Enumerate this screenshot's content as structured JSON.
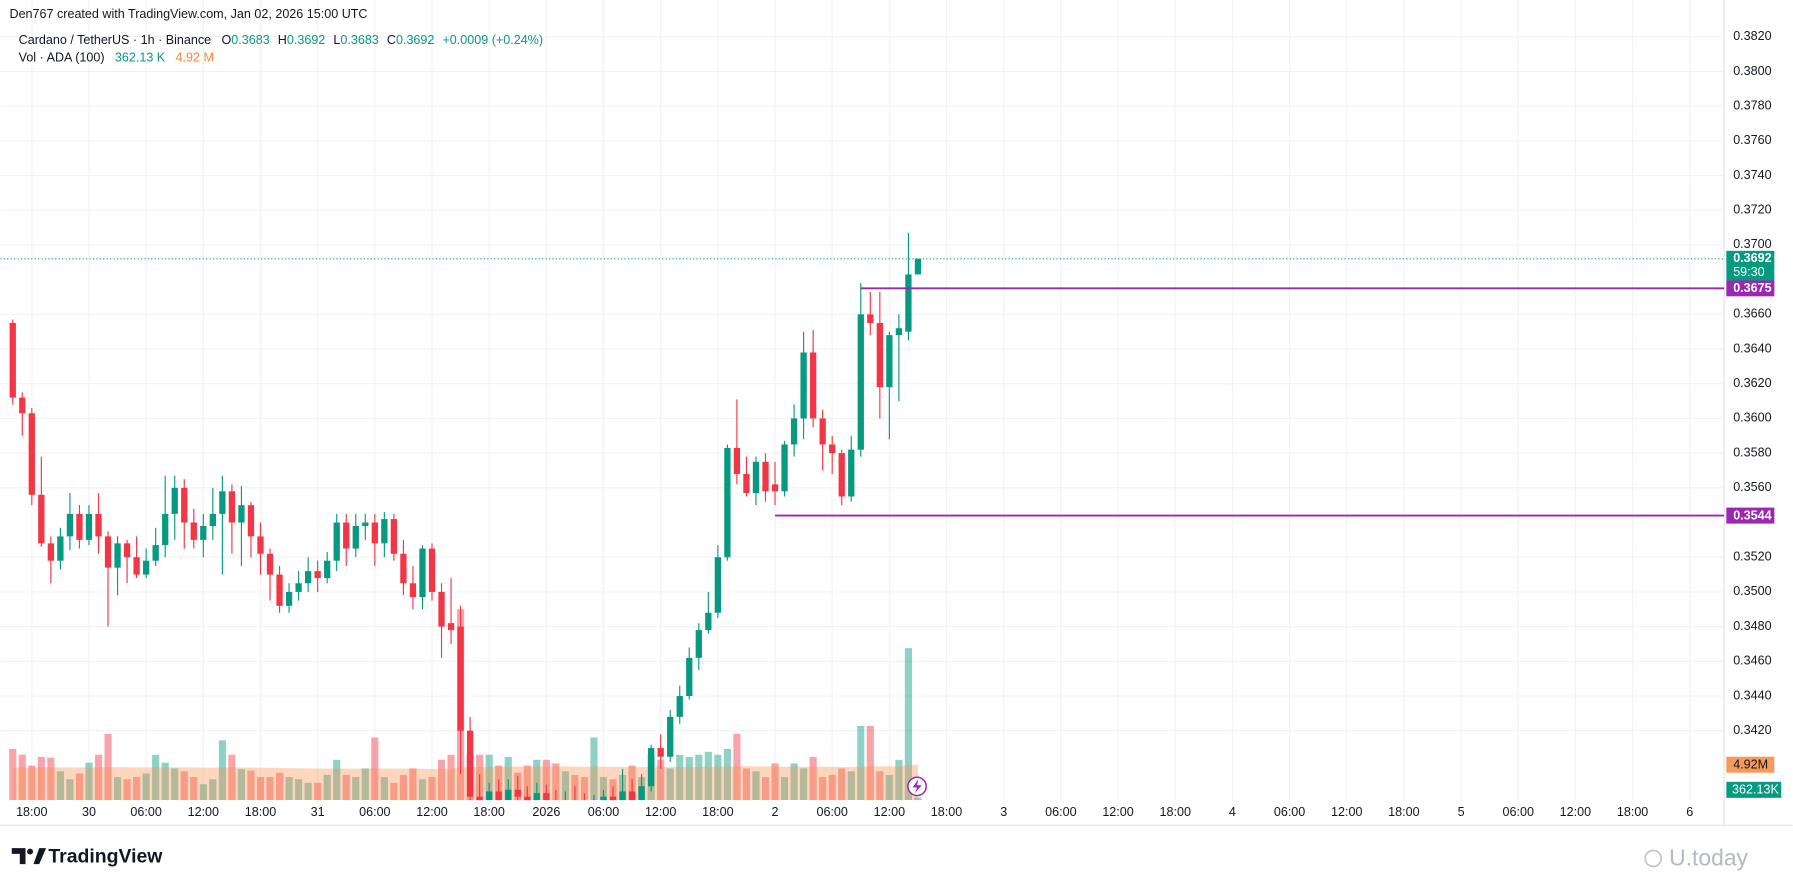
{
  "header": {
    "credit": "Den767 created with TradingView.com, Jan 02, 2026 15:00 UTC"
  },
  "legend": {
    "symbol": "Cardano / TetherUS · 1h · Binance",
    "o_label": "O",
    "o": "0.3683",
    "h_label": "H",
    "h": "0.3692",
    "l_label": "L",
    "l": "0.3683",
    "c_label": "C",
    "c": "0.3692",
    "change": "+0.0009 (+0.24%)",
    "volume_title": "Vol · ADA (100)",
    "volume": "362.13 K",
    "volume_ma": "4.92 M"
  },
  "footer": {
    "logo": "TradingView",
    "watermark": "U.today"
  },
  "chart_data": {
    "type": "candlestick",
    "up_color": "#089981",
    "down_color": "#f23645",
    "volume_up_color": "rgba(8,153,129,0.45)",
    "volume_down_color": "rgba(242,54,69,0.45)",
    "ma_color": "rgba(247,140,70,0.35)",
    "ma_label_color": "#f59a5c",
    "level_color": "#9c27b0",
    "grid": true,
    "xlim": [
      -1.3,
      179.6
    ],
    "ylim": [
      0.338,
      0.3828
    ],
    "open": [
      0.3655,
      0.3612,
      0.3603,
      0.3556,
      0.3528,
      0.3518,
      0.3532,
      0.3545,
      0.353,
      0.3545,
      0.3532,
      0.3514,
      0.3528,
      0.352,
      0.351,
      0.3518,
      0.3527,
      0.3545,
      0.356,
      0.354,
      0.353,
      0.3538,
      0.3545,
      0.3558,
      0.354,
      0.355,
      0.3532,
      0.3522,
      0.351,
      0.3492,
      0.35,
      0.3505,
      0.3512,
      0.3508,
      0.3518,
      0.354,
      0.3525,
      0.3538,
      0.354,
      0.3528,
      0.3542,
      0.3522,
      0.3505,
      0.3497,
      0.3525,
      0.35,
      0.3482,
      0.348,
      0.342,
      0.3382,
      0.3378,
      0.3385,
      0.338,
      0.3386,
      0.3382,
      0.3378,
      0.3384,
      0.338,
      0.3376,
      0.338,
      0.3378,
      0.3375,
      0.3378,
      0.3382,
      0.3379,
      0.3385,
      0.338,
      0.3388,
      0.341,
      0.3405,
      0.3428,
      0.344,
      0.3462,
      0.3478,
      0.3488,
      0.352,
      0.3583,
      0.3568,
      0.3557,
      0.3575,
      0.3562,
      0.3558,
      0.3585,
      0.36,
      0.3638,
      0.36,
      0.3585,
      0.358,
      0.3555,
      0.3582,
      0.366,
      0.3655,
      0.3618,
      0.3648,
      0.365,
      0.3683
    ],
    "high": [
      0.3657,
      0.3615,
      0.3606,
      0.3578,
      0.3532,
      0.3537,
      0.3557,
      0.355,
      0.355,
      0.3557,
      0.3535,
      0.3532,
      0.353,
      0.3532,
      0.3525,
      0.3537,
      0.3567,
      0.3567,
      0.3565,
      0.3548,
      0.3545,
      0.356,
      0.3567,
      0.3562,
      0.3561,
      0.3552,
      0.354,
      0.3525,
      0.3515,
      0.3505,
      0.3512,
      0.352,
      0.3518,
      0.3523,
      0.3545,
      0.3545,
      0.3545,
      0.3545,
      0.3545,
      0.3546,
      0.3545,
      0.353,
      0.3515,
      0.3527,
      0.3528,
      0.3505,
      0.3508,
      0.3492,
      0.3428,
      0.3395,
      0.339,
      0.3392,
      0.3392,
      0.3394,
      0.3388,
      0.339,
      0.3389,
      0.3386,
      0.3385,
      0.3388,
      0.3384,
      0.3383,
      0.3386,
      0.3388,
      0.3398,
      0.3392,
      0.3395,
      0.3412,
      0.3418,
      0.3432,
      0.3446,
      0.3468,
      0.3482,
      0.35,
      0.3527,
      0.3585,
      0.3611,
      0.3578,
      0.3578,
      0.358,
      0.3575,
      0.3587,
      0.3608,
      0.365,
      0.3651,
      0.3605,
      0.359,
      0.3582,
      0.359,
      0.3678,
      0.3673,
      0.3673,
      0.365,
      0.366,
      0.3707,
      0.3692
    ],
    "low": [
      0.3608,
      0.359,
      0.355,
      0.3526,
      0.3505,
      0.3513,
      0.3524,
      0.3525,
      0.3527,
      0.3522,
      0.348,
      0.3498,
      0.3505,
      0.3508,
      0.3508,
      0.3515,
      0.352,
      0.353,
      0.3525,
      0.3525,
      0.352,
      0.353,
      0.351,
      0.3522,
      0.3515,
      0.352,
      0.351,
      0.3495,
      0.3488,
      0.3488,
      0.3495,
      0.35,
      0.35,
      0.3505,
      0.3512,
      0.3515,
      0.352,
      0.353,
      0.3515,
      0.352,
      0.3518,
      0.3498,
      0.349,
      0.349,
      0.3495,
      0.3462,
      0.347,
      0.3395,
      0.3375,
      0.337,
      0.3372,
      0.3375,
      0.3376,
      0.3378,
      0.3372,
      0.3374,
      0.3376,
      0.337,
      0.3368,
      0.3372,
      0.3368,
      0.3368,
      0.3372,
      0.3375,
      0.3376,
      0.3376,
      0.3378,
      0.3385,
      0.3398,
      0.3402,
      0.3424,
      0.3438,
      0.3455,
      0.3476,
      0.3485,
      0.3518,
      0.3562,
      0.3555,
      0.355,
      0.3552,
      0.355,
      0.3555,
      0.3578,
      0.3588,
      0.3595,
      0.357,
      0.3568,
      0.355,
      0.3552,
      0.3578,
      0.3648,
      0.36,
      0.3588,
      0.361,
      0.3645,
      0.3683
    ],
    "close": [
      0.3612,
      0.3603,
      0.3556,
      0.3528,
      0.3518,
      0.3532,
      0.3545,
      0.353,
      0.3545,
      0.3532,
      0.3514,
      0.3528,
      0.352,
      0.351,
      0.3518,
      0.3527,
      0.3545,
      0.356,
      0.354,
      0.353,
      0.3538,
      0.3545,
      0.3558,
      0.354,
      0.355,
      0.3532,
      0.3522,
      0.351,
      0.3492,
      0.35,
      0.3505,
      0.3512,
      0.3508,
      0.3518,
      0.354,
      0.3525,
      0.3538,
      0.354,
      0.3528,
      0.3542,
      0.3522,
      0.3505,
      0.3497,
      0.3525,
      0.35,
      0.348,
      0.3478,
      0.342,
      0.3382,
      0.3378,
      0.3385,
      0.338,
      0.3386,
      0.3382,
      0.3378,
      0.3384,
      0.338,
      0.3376,
      0.338,
      0.3378,
      0.3375,
      0.3378,
      0.3382,
      0.3379,
      0.3385,
      0.338,
      0.3388,
      0.341,
      0.3405,
      0.3428,
      0.344,
      0.3462,
      0.3478,
      0.3488,
      0.352,
      0.3583,
      0.3568,
      0.3557,
      0.3575,
      0.3558,
      0.3558,
      0.3585,
      0.36,
      0.3638,
      0.36,
      0.3585,
      0.358,
      0.3555,
      0.3582,
      0.366,
      0.3655,
      0.3618,
      0.3648,
      0.3652,
      0.3683,
      0.3692
    ],
    "volume": [
      7100000,
      6300000,
      4800000,
      6000000,
      5900000,
      4000000,
      2900000,
      3700000,
      5200000,
      6300000,
      9200000,
      3200000,
      2900000,
      3200000,
      3700000,
      6300000,
      5200000,
      4400000,
      4000000,
      3200000,
      2200000,
      2900000,
      8300000,
      6300000,
      4300000,
      4100000,
      3200000,
      3200000,
      3800000,
      3200000,
      2900000,
      2400000,
      2400000,
      3500000,
      5600000,
      3500000,
      3200000,
      4400000,
      8700000,
      3200000,
      2400000,
      3500000,
      4400000,
      2900000,
      3200000,
      5600000,
      6300000,
      26500000,
      6300000,
      6300000,
      6300000,
      4800000,
      6000000,
      3800000,
      4800000,
      5600000,
      5600000,
      5100000,
      4000000,
      3500000,
      3200000,
      8700000,
      3200000,
      2900000,
      3500000,
      4800000,
      3200000,
      6300000,
      5600000,
      4400000,
      6300000,
      6000000,
      6300000,
      6700000,
      6300000,
      7100000,
      9200000,
      4400000,
      4000000,
      3200000,
      5100000,
      3200000,
      5100000,
      4400000,
      6000000,
      3200000,
      3500000,
      4400000,
      4000000,
      10300000,
      10300000,
      4000000,
      3500000,
      5600000,
      21100000,
      362130
    ],
    "volume_ma": [
      4500000,
      4520000,
      4530000,
      4540000,
      4550000,
      4550000,
      4540000,
      4530000,
      4530000,
      4540000,
      4580000,
      4570000,
      4560000,
      4550000,
      4540000,
      4550000,
      4560000,
      4560000,
      4550000,
      4540000,
      4520000,
      4500000,
      4530000,
      4540000,
      4530000,
      4520000,
      4500000,
      4480000,
      4470000,
      4450000,
      4430000,
      4410000,
      4390000,
      4380000,
      4390000,
      4380000,
      4370000,
      4370000,
      4410000,
      4400000,
      4380000,
      4370000,
      4370000,
      4350000,
      4340000,
      4350000,
      4370000,
      4580000,
      4600000,
      4620000,
      4640000,
      4650000,
      4660000,
      4650000,
      4650000,
      4660000,
      4670000,
      4670000,
      4660000,
      4650000,
      4630000,
      4660000,
      4640000,
      4620000,
      4610000,
      4610000,
      4590000,
      4600000,
      4610000,
      4600000,
      4610000,
      4620000,
      4630000,
      4640000,
      4650000,
      4670000,
      4710000,
      4700000,
      4690000,
      4670000,
      4670000,
      4650000,
      4650000,
      4640000,
      4650000,
      4630000,
      4620000,
      4610000,
      4600000,
      4650000,
      4700000,
      4690000,
      4680000,
      4690000,
      4850000,
      4920000
    ],
    "xticks": [
      {
        "value": 2,
        "label": "18:00"
      },
      {
        "value": 8,
        "label": "30"
      },
      {
        "value": 14,
        "label": "06:00"
      },
      {
        "value": 20,
        "label": "12:00"
      },
      {
        "value": 26,
        "label": "18:00"
      },
      {
        "value": 32,
        "label": "31"
      },
      {
        "value": 38,
        "label": "06:00"
      },
      {
        "value": 44,
        "label": "12:00"
      },
      {
        "value": 50,
        "label": "18:00"
      },
      {
        "value": 56,
        "label": "2026"
      },
      {
        "value": 62,
        "label": "06:00"
      },
      {
        "value": 68,
        "label": "12:00"
      },
      {
        "value": 74,
        "label": "18:00"
      },
      {
        "value": 80,
        "label": "2"
      },
      {
        "value": 86,
        "label": "06:00"
      },
      {
        "value": 92,
        "label": "12:00"
      },
      {
        "value": 98,
        "label": "18:00"
      },
      {
        "value": 104,
        "label": "3"
      },
      {
        "value": 110,
        "label": "06:00"
      },
      {
        "value": 116,
        "label": "12:00"
      },
      {
        "value": 122,
        "label": "18:00"
      },
      {
        "value": 128,
        "label": "4"
      },
      {
        "value": 134,
        "label": "06:00"
      },
      {
        "value": 140,
        "label": "12:00"
      },
      {
        "value": 146,
        "label": "18:00"
      },
      {
        "value": 152,
        "label": "5"
      },
      {
        "value": 158,
        "label": "06:00"
      },
      {
        "value": 164,
        "label": "12:00"
      },
      {
        "value": 170,
        "label": "18:00"
      },
      {
        "value": 176,
        "label": "6"
      }
    ],
    "yticks": [
      {
        "value": 0.342,
        "label": "0.3420"
      },
      {
        "value": 0.344,
        "label": "0.3440"
      },
      {
        "value": 0.346,
        "label": "0.3460"
      },
      {
        "value": 0.348,
        "label": "0.3480"
      },
      {
        "value": 0.35,
        "label": "0.3500"
      },
      {
        "value": 0.352,
        "label": "0.3520"
      },
      {
        "value": 0.356,
        "label": "0.3560"
      },
      {
        "value": 0.358,
        "label": "0.3580"
      },
      {
        "value": 0.36,
        "label": "0.3600"
      },
      {
        "value": 0.362,
        "label": "0.3620"
      },
      {
        "value": 0.364,
        "label": "0.3640"
      },
      {
        "value": 0.366,
        "label": "0.3660"
      },
      {
        "value": 0.37,
        "label": "0.3700"
      },
      {
        "value": 0.372,
        "label": "0.3720"
      },
      {
        "value": 0.374,
        "label": "0.3740"
      },
      {
        "value": 0.376,
        "label": "0.3760"
      },
      {
        "value": 0.378,
        "label": "0.3780"
      },
      {
        "value": 0.38,
        "label": "0.3800"
      },
      {
        "value": 0.382,
        "label": "0.3820"
      }
    ],
    "last_price": {
      "value": 0.3692,
      "label": "0.3692",
      "countdown": "59:30"
    },
    "levels": [
      {
        "value": 0.3675,
        "label": "0.3675",
        "start": 89
      },
      {
        "value": 0.3544,
        "label": "0.3544",
        "start": 80
      }
    ],
    "volume_ma_label": {
      "value": 4920000,
      "label": "4.92M"
    },
    "volume_label": {
      "value": 362130,
      "label": "362.13K"
    }
  }
}
